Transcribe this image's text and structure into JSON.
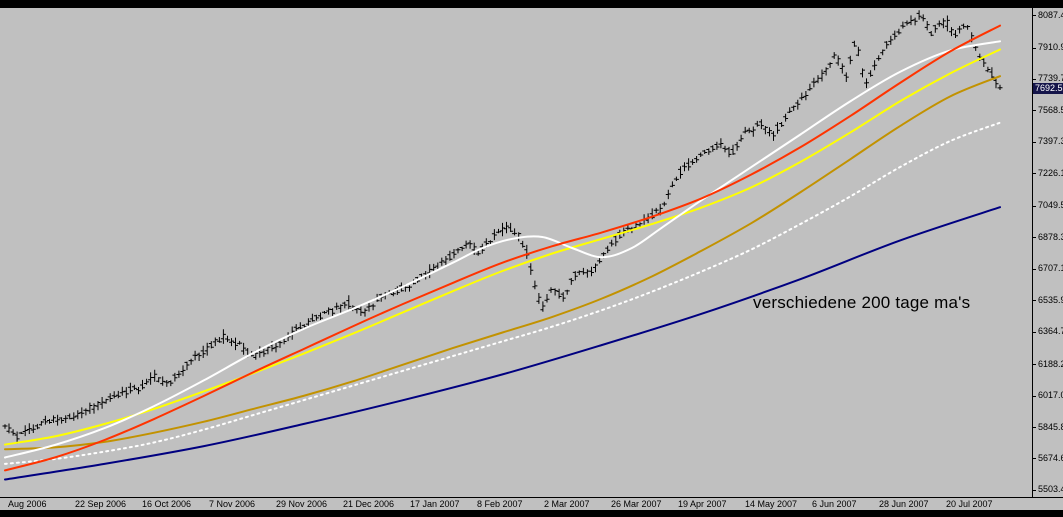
{
  "colors": {
    "background": "#C0C0C0",
    "frame": "#000000",
    "bars": "#000000",
    "axis_text": "#000000",
    "badge_bg": "#15154A",
    "badge_text": "#FFFFFF"
  },
  "annotation": {
    "text": "verschiedene 200 tage ma's"
  },
  "price_axis": {
    "current_price": "7692.53"
  },
  "chart_data": {
    "type": "bar",
    "subtype": "ohlc-bars-with-moving-average-overlays",
    "title": "",
    "xlabel": "",
    "ylabel": "",
    "annotation": "verschiedene 200 tage ma's",
    "grid": false,
    "legend": "none",
    "ylim": [
      5465,
      8126
    ],
    "current_price": 7692.53,
    "bars_count": 247,
    "y_ticks": [
      "8087.45",
      "7910.90",
      "7739.70",
      "7568.50",
      "7397.30",
      "7226.10",
      "7049.55",
      "6878.35",
      "6707.15",
      "6535.95",
      "6364.75",
      "6188.20",
      "6017.00",
      "5845.80",
      "5674.60",
      "5503.40"
    ],
    "x_ticks": [
      "Aug 2006",
      "22 Sep 2006",
      "16 Oct 2006",
      "7 Nov 2006",
      "29 Nov 2006",
      "21 Dec 2006",
      "17 Jan 2007",
      "8 Feb 2007",
      "2 Mar 2007",
      "26 Mar 2007",
      "19 Apr 2007",
      "14 May 2007",
      "6 Jun 2007",
      "28 Jun 2007",
      "20 Jul 2007"
    ],
    "price_path": [
      [
        0.0,
        5850
      ],
      [
        0.012,
        5795
      ],
      [
        0.03,
        5845
      ],
      [
        0.05,
        5890
      ],
      [
        0.07,
        5905
      ],
      [
        0.085,
        5945
      ],
      [
        0.1,
        5985
      ],
      [
        0.115,
        6030
      ],
      [
        0.138,
        6065
      ],
      [
        0.15,
        6120
      ],
      [
        0.165,
        6080
      ],
      [
        0.185,
        6200
      ],
      [
        0.205,
        6280
      ],
      [
        0.22,
        6345
      ],
      [
        0.235,
        6290
      ],
      [
        0.25,
        6230
      ],
      [
        0.272,
        6290
      ],
      [
        0.29,
        6370
      ],
      [
        0.31,
        6440
      ],
      [
        0.33,
        6480
      ],
      [
        0.345,
        6520
      ],
      [
        0.36,
        6460
      ],
      [
        0.38,
        6560
      ],
      [
        0.407,
        6620
      ],
      [
        0.425,
        6680
      ],
      [
        0.44,
        6740
      ],
      [
        0.455,
        6800
      ],
      [
        0.465,
        6850
      ],
      [
        0.475,
        6790
      ],
      [
        0.49,
        6880
      ],
      [
        0.505,
        6940
      ],
      [
        0.515,
        6900
      ],
      [
        0.525,
        6790
      ],
      [
        0.533,
        6600
      ],
      [
        0.54,
        6480
      ],
      [
        0.55,
        6620
      ],
      [
        0.56,
        6550
      ],
      [
        0.575,
        6700
      ],
      [
        0.59,
        6680
      ],
      [
        0.605,
        6820
      ],
      [
        0.62,
        6900
      ],
      [
        0.64,
        6960
      ],
      [
        0.66,
        7030
      ],
      [
        0.676,
        7220
      ],
      [
        0.7,
        7330
      ],
      [
        0.72,
        7390
      ],
      [
        0.73,
        7330
      ],
      [
        0.744,
        7440
      ],
      [
        0.76,
        7500
      ],
      [
        0.77,
        7430
      ],
      [
        0.79,
        7560
      ],
      [
        0.81,
        7690
      ],
      [
        0.825,
        7780
      ],
      [
        0.835,
        7870
      ],
      [
        0.845,
        7750
      ],
      [
        0.855,
        7950
      ],
      [
        0.865,
        7700
      ],
      [
        0.878,
        7850
      ],
      [
        0.89,
        7960
      ],
      [
        0.905,
        8030
      ],
      [
        0.92,
        8090
      ],
      [
        0.93,
        7990
      ],
      [
        0.945,
        8060
      ],
      [
        0.955,
        7980
      ],
      [
        0.965,
        8040
      ],
      [
        0.975,
        7920
      ],
      [
        0.985,
        7820
      ],
      [
        1.0,
        7693
      ]
    ],
    "series": [
      {
        "name": "200d-ma-navy",
        "color": "#000080",
        "width": 2,
        "dash": null,
        "points": [
          [
            0.0,
            5560
          ],
          [
            0.1,
            5645
          ],
          [
            0.2,
            5742
          ],
          [
            0.3,
            5862
          ],
          [
            0.4,
            5992
          ],
          [
            0.5,
            6132
          ],
          [
            0.6,
            6292
          ],
          [
            0.7,
            6462
          ],
          [
            0.8,
            6652
          ],
          [
            0.9,
            6862
          ],
          [
            1.0,
            7042
          ]
        ]
      },
      {
        "name": "200d-ma-white-dotted",
        "color": "#FFFFFF",
        "width": 2,
        "dash": "2,4",
        "points": [
          [
            0.0,
            5645
          ],
          [
            0.05,
            5672
          ],
          [
            0.1,
            5712
          ],
          [
            0.15,
            5762
          ],
          [
            0.2,
            5832
          ],
          [
            0.25,
            5912
          ],
          [
            0.3,
            5992
          ],
          [
            0.35,
            6072
          ],
          [
            0.4,
            6152
          ],
          [
            0.45,
            6232
          ],
          [
            0.5,
            6312
          ],
          [
            0.55,
            6392
          ],
          [
            0.6,
            6482
          ],
          [
            0.65,
            6582
          ],
          [
            0.7,
            6692
          ],
          [
            0.75,
            6812
          ],
          [
            0.8,
            6952
          ],
          [
            0.85,
            7102
          ],
          [
            0.9,
            7262
          ],
          [
            0.95,
            7402
          ],
          [
            1.0,
            7502
          ]
        ]
      },
      {
        "name": "200d-ma-darkgold",
        "color": "#C29200",
        "width": 2,
        "dash": null,
        "points": [
          [
            0.0,
            5725
          ],
          [
            0.05,
            5735
          ],
          [
            0.1,
            5765
          ],
          [
            0.15,
            5815
          ],
          [
            0.2,
            5875
          ],
          [
            0.25,
            5945
          ],
          [
            0.3,
            6015
          ],
          [
            0.35,
            6095
          ],
          [
            0.4,
            6185
          ],
          [
            0.45,
            6275
          ],
          [
            0.5,
            6360
          ],
          [
            0.55,
            6445
          ],
          [
            0.6,
            6545
          ],
          [
            0.65,
            6665
          ],
          [
            0.7,
            6805
          ],
          [
            0.75,
            6955
          ],
          [
            0.8,
            7125
          ],
          [
            0.85,
            7305
          ],
          [
            0.9,
            7485
          ],
          [
            0.95,
            7645
          ],
          [
            1.0,
            7755
          ]
        ]
      },
      {
        "name": "200d-ma-yellow",
        "color": "#FFFF00",
        "width": 2,
        "dash": null,
        "points": [
          [
            0.0,
            5750
          ],
          [
            0.05,
            5795
          ],
          [
            0.1,
            5862
          ],
          [
            0.15,
            5945
          ],
          [
            0.2,
            6040
          ],
          [
            0.25,
            6140
          ],
          [
            0.3,
            6245
          ],
          [
            0.35,
            6355
          ],
          [
            0.4,
            6470
          ],
          [
            0.45,
            6585
          ],
          [
            0.5,
            6695
          ],
          [
            0.55,
            6790
          ],
          [
            0.6,
            6870
          ],
          [
            0.65,
            6950
          ],
          [
            0.7,
            7040
          ],
          [
            0.75,
            7150
          ],
          [
            0.8,
            7290
          ],
          [
            0.85,
            7450
          ],
          [
            0.9,
            7620
          ],
          [
            0.95,
            7770
          ],
          [
            1.0,
            7900
          ]
        ]
      },
      {
        "name": "200d-ma-white-solid",
        "color": "#FFFFFF",
        "width": 2,
        "dash": null,
        "points": [
          [
            0.0,
            5680
          ],
          [
            0.05,
            5748
          ],
          [
            0.1,
            5840
          ],
          [
            0.15,
            5960
          ],
          [
            0.2,
            6100
          ],
          [
            0.25,
            6250
          ],
          [
            0.3,
            6380
          ],
          [
            0.35,
            6490
          ],
          [
            0.4,
            6610
          ],
          [
            0.45,
            6740
          ],
          [
            0.48,
            6820
          ],
          [
            0.51,
            6870
          ],
          [
            0.54,
            6880
          ],
          [
            0.57,
            6820
          ],
          [
            0.6,
            6770
          ],
          [
            0.63,
            6820
          ],
          [
            0.66,
            6930
          ],
          [
            0.7,
            7080
          ],
          [
            0.75,
            7260
          ],
          [
            0.8,
            7440
          ],
          [
            0.85,
            7620
          ],
          [
            0.9,
            7780
          ],
          [
            0.95,
            7895
          ],
          [
            1.0,
            7945
          ]
        ]
      },
      {
        "name": "200d-ma-red",
        "color": "#FF3300",
        "width": 2,
        "dash": null,
        "points": [
          [
            0.0,
            5610
          ],
          [
            0.05,
            5680
          ],
          [
            0.1,
            5775
          ],
          [
            0.15,
            5890
          ],
          [
            0.2,
            6015
          ],
          [
            0.25,
            6145
          ],
          [
            0.3,
            6270
          ],
          [
            0.35,
            6395
          ],
          [
            0.4,
            6515
          ],
          [
            0.45,
            6630
          ],
          [
            0.5,
            6740
          ],
          [
            0.55,
            6830
          ],
          [
            0.6,
            6905
          ],
          [
            0.65,
            6990
          ],
          [
            0.7,
            7090
          ],
          [
            0.75,
            7220
          ],
          [
            0.8,
            7370
          ],
          [
            0.85,
            7540
          ],
          [
            0.9,
            7720
          ],
          [
            0.95,
            7890
          ],
          [
            1.0,
            8030
          ]
        ]
      }
    ]
  }
}
